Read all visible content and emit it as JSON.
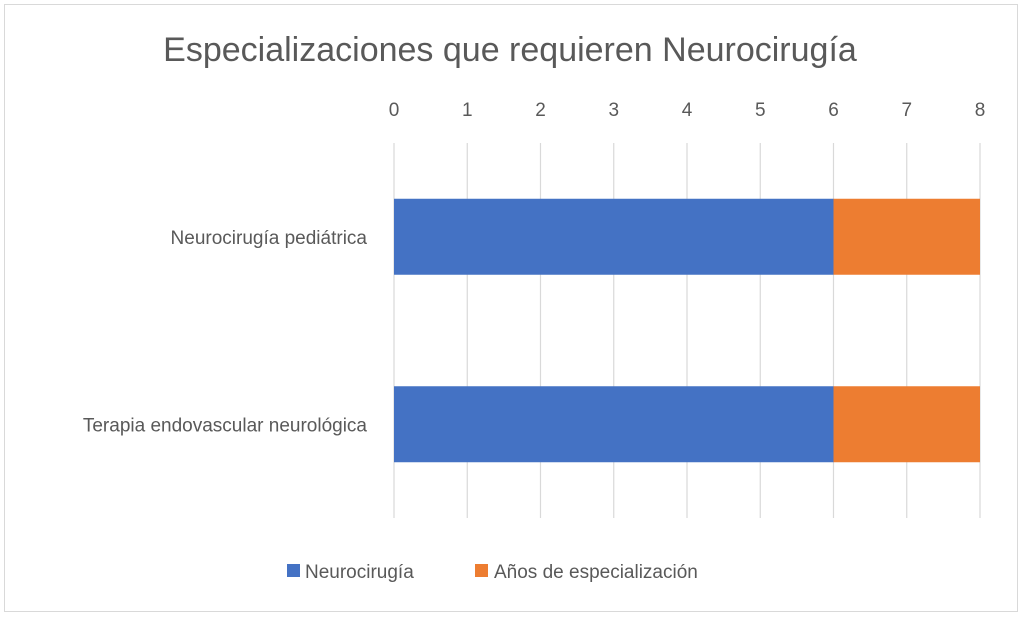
{
  "chart_data": {
    "type": "bar",
    "orientation": "horizontal",
    "stacked": true,
    "title": "Especializaciones que requieren Neurocirugía",
    "categories": [
      "Neurocirugía pediátrica",
      "Terapia endovascular neurológica"
    ],
    "series": [
      {
        "name": "Neurocirugía",
        "values": [
          6,
          6
        ],
        "color": "#4472C4"
      },
      {
        "name": "Años de especialización",
        "values": [
          2,
          2
        ],
        "color": "#ED7D31"
      }
    ],
    "x_ticks": [
      "0",
      "1",
      "2",
      "3",
      "4",
      "5",
      "6",
      "7",
      "8"
    ],
    "xlim": [
      0,
      8
    ],
    "axis_position": "top",
    "grid": true,
    "legend_position": "bottom"
  }
}
